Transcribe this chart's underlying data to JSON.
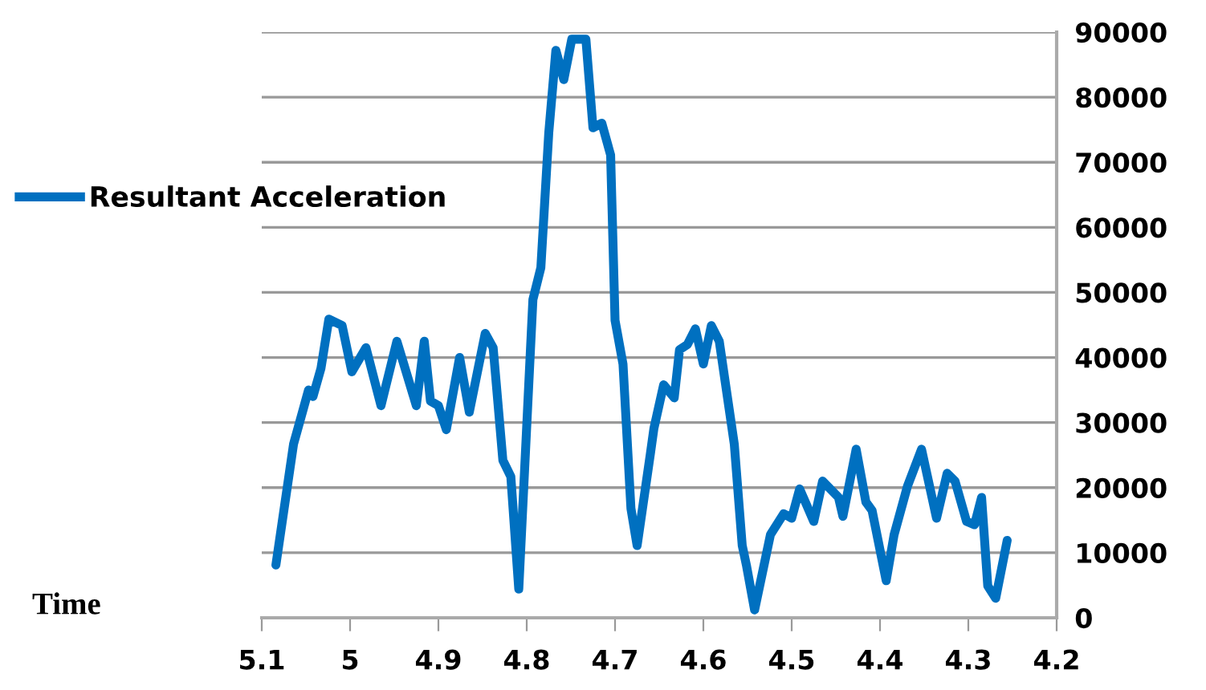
{
  "chart_data": {
    "type": "line",
    "xlabel": "Time",
    "x": [
      5.084,
      5.064,
      5.047,
      5.042,
      5.033,
      5.024,
      5.009,
      4.998,
      4.982,
      4.965,
      4.947,
      4.925,
      4.916,
      4.909,
      4.9,
      4.891,
      4.876,
      4.865,
      4.847,
      4.838,
      4.827,
      4.818,
      4.809,
      4.793,
      4.784,
      4.775,
      4.767,
      4.758,
      4.749,
      4.733,
      4.725,
      4.715,
      4.705,
      4.7,
      4.691,
      4.682,
      4.675,
      4.66,
      4.656,
      4.645,
      4.633,
      4.627,
      4.618,
      4.609,
      4.6,
      4.591,
      4.582,
      4.565,
      4.556,
      4.551,
      4.542,
      4.524,
      4.509,
      4.5,
      4.491,
      4.475,
      4.465,
      4.447,
      4.442,
      4.427,
      4.416,
      4.409,
      4.393,
      4.384,
      4.369,
      4.353,
      4.336,
      4.324,
      4.315,
      4.302,
      4.293,
      4.285,
      4.278,
      4.269,
      4.256
    ],
    "series": [
      {
        "name": "Resultant Acceleration",
        "color": "#0070c0",
        "values": [
          8100,
          26700,
          35000,
          34000,
          38300,
          45900,
          44900,
          37800,
          41500,
          32600,
          42500,
          32600,
          42500,
          33300,
          32600,
          28900,
          40000,
          31600,
          43700,
          41500,
          24200,
          21700,
          4400,
          48900,
          53800,
          74600,
          87200,
          82700,
          88900,
          88900,
          75300,
          76000,
          71100,
          45700,
          39000,
          16800,
          11100,
          25200,
          29100,
          35800,
          33800,
          41200,
          42000,
          44400,
          39000,
          44900,
          42500,
          26700,
          11100,
          7900,
          1200,
          12800,
          16000,
          15300,
          19800,
          14800,
          21000,
          18500,
          15600,
          25900,
          17800,
          16500,
          5700,
          12800,
          20200,
          25900,
          15300,
          22200,
          21000,
          14800,
          14300,
          18500,
          4900,
          3000,
          11900
        ]
      }
    ],
    "xlim": [
      5.1,
      4.2
    ],
    "xticks": [
      5.1,
      5,
      4.9,
      4.8,
      4.7,
      4.6,
      4.5,
      4.4,
      4.3,
      4.2
    ],
    "ylim": [
      0,
      90000
    ],
    "yticks": [
      0,
      10000,
      20000,
      30000,
      40000,
      50000,
      60000,
      70000,
      80000,
      90000
    ],
    "grid": "y",
    "legend": "left",
    "marker": "none",
    "line_style": "solid"
  }
}
